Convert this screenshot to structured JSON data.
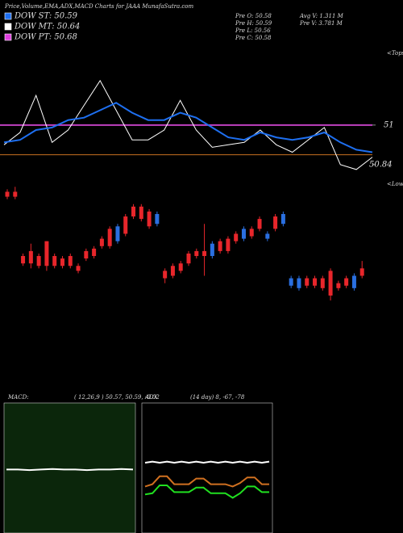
{
  "header": {
    "title": "Price,Volume,EMA,ADX,MACD Charts for JAAA MunafaSutra.com"
  },
  "legend": [
    {
      "name": "DOW ST: 50.59",
      "color": "#1e6ff0"
    },
    {
      "name": "DOW MT: 50.64",
      "color": "#ffffff"
    },
    {
      "name": "DOW PT: 50.68",
      "color": "#e040e0"
    }
  ],
  "info": [
    "Pre   O: 50.58",
    "Pre   H: 50.59",
    "Pre   L: 50.56",
    "Pre   C: 50.58",
    "Avg V: 1.311 M",
    "Pre   V: 3.781 M"
  ],
  "markers": {
    "tops": "<Tops",
    "lows": "<Lows"
  },
  "chart_data": {
    "type": "candlestick",
    "ylim": [
      49.97,
      51.31
    ],
    "yticks": [
      51,
      50.84
    ],
    "up_color": "#e8262b",
    "down_color": "#2a6fe0",
    "levels": [
      {
        "value": 51,
        "color": "#c040c0"
      },
      {
        "value": 50.88,
        "color": "#c87020"
      }
    ],
    "open": [
      50.71,
      50.71,
      50.44,
      50.44,
      50.43,
      50.43,
      50.43,
      50.43,
      50.43,
      50.41,
      50.46,
      50.47,
      50.51,
      50.51,
      50.59,
      50.56,
      50.63,
      50.62,
      50.59,
      50.64,
      50.38,
      50.39,
      50.41,
      50.44,
      50.47,
      50.47,
      50.52,
      50.49,
      50.49,
      50.53,
      50.58,
      50.55,
      50.58,
      50.56,
      50.58,
      50.64,
      50.38,
      50.38,
      50.35,
      50.35,
      50.34,
      50.31,
      50.34,
      50.35,
      50.39,
      50.39
    ],
    "high": [
      50.74,
      50.75,
      50.48,
      50.52,
      50.48,
      50.53,
      50.48,
      50.47,
      50.48,
      50.44,
      50.5,
      50.51,
      50.55,
      50.59,
      50.6,
      50.64,
      50.68,
      50.68,
      50.66,
      50.65,
      50.42,
      50.44,
      50.45,
      50.49,
      50.5,
      50.6,
      50.53,
      50.54,
      50.55,
      50.57,
      50.59,
      50.59,
      50.63,
      50.57,
      50.64,
      50.65,
      50.39,
      50.39,
      50.39,
      50.39,
      50.39,
      50.42,
      50.37,
      50.39,
      50.4,
      50.45
    ],
    "low": [
      50.7,
      50.7,
      50.43,
      50.42,
      50.42,
      50.41,
      50.42,
      50.42,
      50.42,
      50.4,
      50.45,
      50.46,
      50.5,
      50.5,
      50.52,
      50.55,
      50.62,
      50.61,
      50.58,
      50.59,
      50.36,
      50.38,
      50.4,
      50.43,
      50.46,
      50.39,
      50.46,
      50.48,
      50.48,
      50.52,
      50.53,
      50.54,
      50.57,
      50.53,
      50.57,
      50.59,
      50.34,
      50.33,
      50.34,
      50.34,
      50.33,
      50.29,
      50.33,
      50.34,
      50.33,
      50.38
    ],
    "close": [
      50.73,
      50.73,
      50.47,
      50.49,
      50.47,
      50.53,
      50.47,
      50.46,
      50.47,
      50.43,
      50.49,
      50.5,
      50.54,
      50.58,
      50.53,
      50.63,
      50.67,
      50.67,
      50.65,
      50.6,
      50.41,
      50.43,
      50.44,
      50.48,
      50.49,
      50.49,
      50.47,
      50.53,
      50.54,
      50.56,
      50.54,
      50.58,
      50.62,
      50.54,
      50.63,
      50.6,
      50.35,
      50.34,
      50.38,
      50.38,
      50.38,
      50.41,
      50.36,
      50.38,
      50.34,
      50.42
    ],
    "lines": [
      {
        "color": "#ffffff",
        "values": [
          50.92,
          50.97,
          51.12,
          50.93,
          50.98,
          51.08,
          51.18,
          51.06,
          50.94,
          50.94,
          50.98,
          51.1,
          50.98,
          50.91,
          50.92,
          50.93,
          50.98,
          50.92,
          50.89,
          50.94,
          50.99,
          50.84,
          50.82,
          50.87
        ]
      },
      {
        "color": "#1e6ff0",
        "values": [
          50.93,
          50.94,
          50.98,
          50.99,
          51.02,
          51.03,
          51.06,
          51.09,
          51.05,
          51.02,
          51.02,
          51.05,
          51.03,
          50.99,
          50.95,
          50.94,
          50.97,
          50.95,
          50.94,
          50.95,
          50.97,
          50.93,
          50.9,
          50.89
        ]
      }
    ]
  },
  "macd": {
    "label": "MACD:",
    "text": "( 12,26,9 ) 50.57,  50.59,  -0.02",
    "ylim": [
      -1,
      1
    ],
    "series": [
      {
        "color": "#ffffff",
        "values": [
          -0.02,
          -0.02,
          -0.03,
          -0.02,
          -0.01,
          -0.02,
          -0.02,
          -0.03,
          -0.02,
          -0.02,
          -0.01,
          -0.02
        ]
      }
    ]
  },
  "adx": {
    "label": "ADX",
    "text": "(14  day) 8,  -67,  -78",
    "ylim": [
      0,
      100
    ],
    "series": [
      {
        "color": "#ffffff",
        "values": [
          55,
          56,
          55,
          56,
          55,
          56,
          55,
          56,
          55,
          56,
          55,
          56,
          55,
          56,
          55,
          56,
          55,
          56
        ]
      },
      {
        "color": "#d07020",
        "values": [
          34,
          36,
          43,
          43,
          36,
          36,
          36,
          41,
          41,
          36,
          36,
          36,
          34,
          37,
          42,
          42,
          36,
          36
        ]
      },
      {
        "color": "#20e020",
        "values": [
          27,
          28,
          35,
          35,
          29,
          29,
          29,
          33,
          33,
          28,
          28,
          28,
          24,
          28,
          34,
          34,
          29,
          29
        ]
      }
    ]
  }
}
